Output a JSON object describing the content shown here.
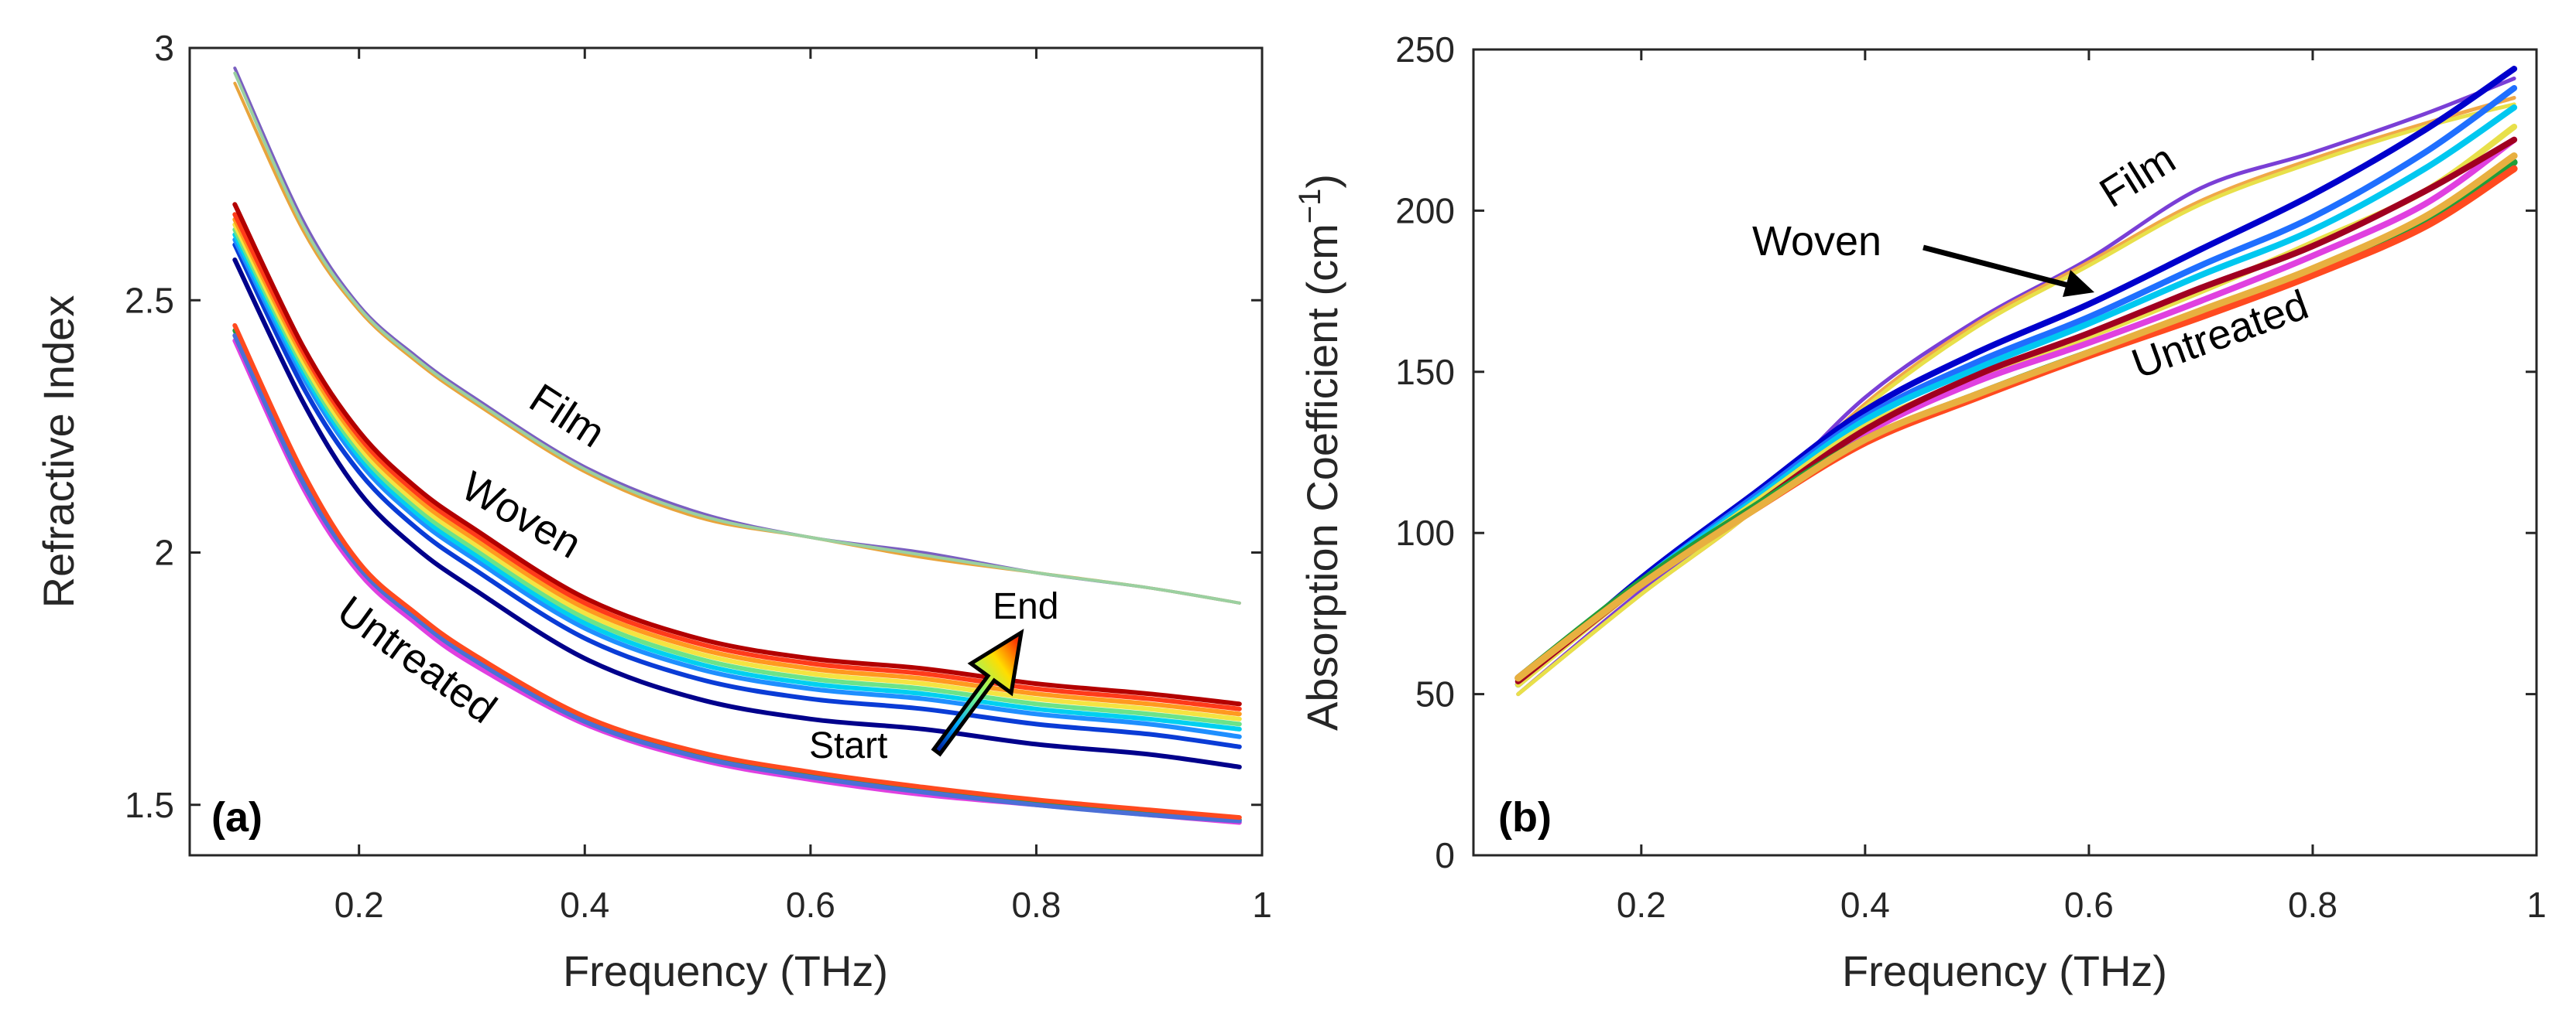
{
  "chart_data": [
    {
      "panel": "a",
      "panel_label": "(a)",
      "type": "line",
      "xlabel": "Frequency (THz)",
      "ylabel": "Refractive Index",
      "xlim": [
        0.05,
        1.0
      ],
      "ylim": [
        1.4,
        3.0
      ],
      "xticks": [
        0.2,
        0.4,
        0.6,
        0.8,
        1.0
      ],
      "xtick_labels": [
        "0.2",
        "0.4",
        "0.6",
        "0.8",
        "1"
      ],
      "yticks": [
        1.5,
        2.0,
        2.5,
        3.0
      ],
      "ytick_labels": [
        "1.5",
        "2",
        "2.5",
        "3"
      ],
      "grid": false,
      "annotations": {
        "film": "Film",
        "woven": "Woven",
        "untreated": "Untreated",
        "start": "Start",
        "end": "End"
      },
      "x": [
        0.09,
        0.15,
        0.2,
        0.25,
        0.3,
        0.4,
        0.5,
        0.6,
        0.7,
        0.8,
        0.9,
        0.98
      ],
      "series": [
        {
          "name": "Film",
          "group": "film",
          "color": "#7a5fc0",
          "values": [
            2.96,
            2.66,
            2.49,
            2.39,
            2.31,
            2.17,
            2.08,
            2.03,
            2.0,
            1.96,
            1.93,
            1.9
          ]
        },
        {
          "name": "Film",
          "group": "film",
          "color": "#e8a43c",
          "values": [
            2.93,
            2.64,
            2.48,
            2.38,
            2.3,
            2.16,
            2.07,
            2.03,
            1.99,
            1.96,
            1.93,
            1.9
          ]
        },
        {
          "name": "Film",
          "group": "film",
          "color": "#9ad0a0",
          "values": [
            2.95,
            2.65,
            2.485,
            2.385,
            2.305,
            2.165,
            2.075,
            2.03,
            1.995,
            1.96,
            1.93,
            1.9
          ]
        },
        {
          "name": "Woven",
          "group": "woven",
          "color": "#00008b",
          "values": [
            2.58,
            2.3,
            2.12,
            2.01,
            1.93,
            1.79,
            1.71,
            1.67,
            1.65,
            1.62,
            1.6,
            1.575
          ]
        },
        {
          "name": "Woven",
          "group": "woven",
          "color": "#0a3cd6",
          "values": [
            2.61,
            2.33,
            2.16,
            2.05,
            1.97,
            1.83,
            1.75,
            1.71,
            1.69,
            1.66,
            1.64,
            1.615
          ]
        },
        {
          "name": "Woven",
          "group": "woven",
          "color": "#1f8fff",
          "values": [
            2.62,
            2.35,
            2.18,
            2.07,
            1.99,
            1.85,
            1.77,
            1.73,
            1.71,
            1.68,
            1.66,
            1.635
          ]
        },
        {
          "name": "Woven",
          "group": "woven",
          "color": "#00d0f0",
          "values": [
            2.63,
            2.36,
            2.19,
            2.08,
            2.0,
            1.86,
            1.78,
            1.74,
            1.72,
            1.69,
            1.67,
            1.65
          ]
        },
        {
          "name": "Woven",
          "group": "woven",
          "color": "#6be38a",
          "values": [
            2.64,
            2.37,
            2.2,
            2.09,
            2.01,
            1.87,
            1.79,
            1.75,
            1.73,
            1.7,
            1.68,
            1.66
          ]
        },
        {
          "name": "Woven",
          "group": "woven",
          "color": "#f4e442",
          "values": [
            2.65,
            2.38,
            2.21,
            2.1,
            2.02,
            1.88,
            1.8,
            1.76,
            1.74,
            1.71,
            1.69,
            1.67
          ]
        },
        {
          "name": "Woven",
          "group": "woven",
          "color": "#ff9a1f",
          "values": [
            2.66,
            2.39,
            2.22,
            2.11,
            2.03,
            1.89,
            1.81,
            1.77,
            1.75,
            1.72,
            1.7,
            1.68
          ]
        },
        {
          "name": "Woven",
          "group": "woven",
          "color": "#ff3b1a",
          "values": [
            2.67,
            2.4,
            2.23,
            2.12,
            2.04,
            1.9,
            1.82,
            1.78,
            1.76,
            1.73,
            1.71,
            1.69
          ]
        },
        {
          "name": "Woven",
          "group": "woven",
          "color": "#b30000",
          "values": [
            2.69,
            2.41,
            2.24,
            2.13,
            2.05,
            1.91,
            1.83,
            1.79,
            1.77,
            1.74,
            1.72,
            1.7
          ]
        },
        {
          "name": "Untreated",
          "group": "untreated",
          "color": "#e040e0",
          "values": [
            2.42,
            2.13,
            1.96,
            1.86,
            1.78,
            1.66,
            1.59,
            1.55,
            1.52,
            1.5,
            1.48,
            1.465
          ]
        },
        {
          "name": "Untreated",
          "group": "untreated",
          "color": "#1f9e3a",
          "values": [
            2.44,
            2.15,
            1.975,
            1.875,
            1.795,
            1.67,
            1.6,
            1.56,
            1.53,
            1.505,
            1.485,
            1.47
          ]
        },
        {
          "name": "Untreated",
          "group": "untreated",
          "color": "#4b6fd6",
          "values": [
            2.43,
            2.14,
            1.97,
            1.87,
            1.79,
            1.665,
            1.595,
            1.555,
            1.525,
            1.5,
            1.48,
            1.468
          ]
        },
        {
          "name": "Untreated",
          "group": "untreated",
          "color": "#ff4a1f",
          "values": [
            2.45,
            2.16,
            1.98,
            1.88,
            1.8,
            1.675,
            1.605,
            1.565,
            1.535,
            1.51,
            1.49,
            1.475
          ]
        }
      ]
    },
    {
      "panel": "b",
      "panel_label": "(b)",
      "type": "line",
      "xlabel": "Frequency (THz)",
      "ylabel_main": "Absorption Coefficient (cm",
      "ylabel_sup": "−1",
      "ylabel_close": ")",
      "xlim": [
        0.05,
        1.0
      ],
      "ylim": [
        0,
        250
      ],
      "xticks": [
        0.2,
        0.4,
        0.6,
        0.8,
        1.0
      ],
      "xtick_labels": [
        "0.2",
        "0.4",
        "0.6",
        "0.8",
        "1"
      ],
      "yticks": [
        0,
        50,
        100,
        150,
        200,
        250
      ],
      "ytick_labels": [
        "0",
        "50",
        "100",
        "150",
        "200",
        "250"
      ],
      "grid": false,
      "annotations": {
        "film": "Film",
        "woven": "Woven",
        "untreated": "Untreated"
      },
      "x": [
        0.09,
        0.2,
        0.3,
        0.4,
        0.5,
        0.6,
        0.7,
        0.8,
        0.9,
        0.98
      ],
      "series": [
        {
          "name": "Film",
          "group": "film",
          "color": "#7a3fd6",
          "values": [
            50,
            82,
            108,
            142,
            166,
            185,
            207,
            218,
            230,
            241
          ]
        },
        {
          "name": "Film",
          "group": "film",
          "color": "#f0a848",
          "values": [
            50,
            81,
            107,
            140,
            165,
            184,
            203,
            216,
            227,
            235
          ]
        },
        {
          "name": "Film",
          "group": "film",
          "color": "#e8e04a",
          "values": [
            50,
            81,
            107,
            139,
            164,
            183,
            202,
            215,
            226,
            233
          ]
        },
        {
          "name": "Woven",
          "group": "woven",
          "color": "#0000cc",
          "values": [
            53,
            86,
            112,
            138,
            156,
            171,
            188,
            205,
            225,
            244
          ]
        },
        {
          "name": "Woven",
          "group": "woven",
          "color": "#1f6fff",
          "values": [
            53,
            85,
            111,
            136,
            153,
            167,
            183,
            198,
            218,
            238
          ]
        },
        {
          "name": "Woven",
          "group": "woven",
          "color": "#00c8f0",
          "values": [
            53,
            85,
            110,
            135,
            151,
            165,
            180,
            194,
            213,
            232
          ]
        },
        {
          "name": "Woven",
          "group": "woven",
          "color": "#e8e04a",
          "values": [
            53,
            84,
            109,
            133,
            148,
            161,
            175,
            190,
            206,
            226
          ]
        },
        {
          "name": "Woven",
          "group": "woven",
          "color": "#e040e0",
          "values": [
            54,
            84,
            108,
            131,
            147,
            159,
            172,
            186,
            202,
            222
          ]
        },
        {
          "name": "Woven",
          "group": "woven",
          "color": "#a00020",
          "values": [
            54,
            84,
            108,
            132,
            149,
            162,
            176,
            189,
            206,
            222
          ]
        },
        {
          "name": "Untreated",
          "group": "untreated",
          "color": "#1f9e3a",
          "values": [
            55,
            85,
            108,
            129,
            143,
            156,
            168,
            181,
            197,
            215
          ]
        },
        {
          "name": "Untreated",
          "group": "untreated",
          "color": "#ff4a1f",
          "values": [
            55,
            84,
            107,
            128,
            142,
            155,
            167,
            180,
            195,
            213
          ]
        },
        {
          "name": "Untreated",
          "group": "untreated",
          "color": "#e8b040",
          "values": [
            55,
            84,
            107,
            129,
            143,
            156,
            169,
            182,
            198,
            217
          ]
        }
      ]
    }
  ]
}
